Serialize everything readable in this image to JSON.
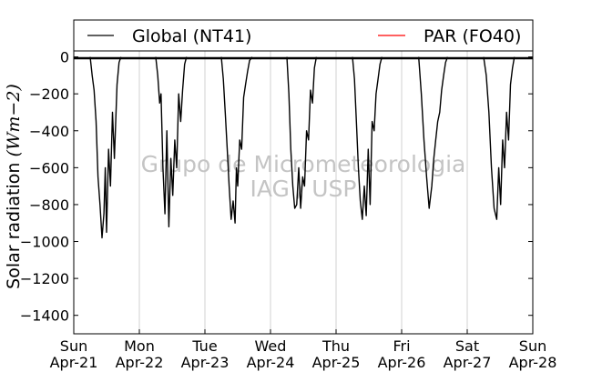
{
  "chart_data": {
    "type": "line",
    "ylabel_text": "Solar radiation ",
    "ylabel_unit": "(Wm−2)",
    "ylim": [
      -1500,
      200
    ],
    "yticks": [
      0,
      -200,
      -400,
      -600,
      -800,
      -1000,
      -1200,
      -1400
    ],
    "ytick_labels": [
      "0",
      "−200",
      "−400",
      "−600",
      "−800",
      "−1000",
      "−1200",
      "−1400"
    ],
    "xlim": [
      "2012-04-21",
      "2012-04-28"
    ],
    "xticks": [
      {
        "weekday": "Sun",
        "date": "Apr-21"
      },
      {
        "weekday": "Mon",
        "date": "Apr-22"
      },
      {
        "weekday": "Tue",
        "date": "Apr-23"
      },
      {
        "weekday": "Wed",
        "date": "Apr-24"
      },
      {
        "weekday": "Thu",
        "date": "Apr-25"
      },
      {
        "weekday": "Fri",
        "date": "Apr-26"
      },
      {
        "weekday": "Sat",
        "date": "Apr-27"
      },
      {
        "weekday": "Sun",
        "date": "Apr-28"
      }
    ],
    "vertical_grid": true,
    "legend": {
      "placement": "top",
      "entries": [
        "Global (NT41)",
        "PAR (FO40)"
      ]
    },
    "watermark": [
      "Grupo de Micrometeorologia",
      "IAG / USP"
    ],
    "series": [
      {
        "name": "Global (NT41)",
        "color": "#000000",
        "days": [
          {
            "x": [
              0.25,
              0.28,
              0.31,
              0.34,
              0.37,
              0.4,
              0.43,
              0.46,
              0.48,
              0.5,
              0.53,
              0.56,
              0.59,
              0.62,
              0.66,
              0.69,
              0.72
            ],
            "y": [
              0,
              -100,
              -180,
              -350,
              -650,
              -800,
              -980,
              -850,
              -600,
              -950,
              -500,
              -700,
              -300,
              -550,
              -150,
              -30,
              0
            ]
          },
          {
            "x": [
              0.25,
              0.28,
              0.31,
              0.33,
              0.36,
              0.39,
              0.42,
              0.45,
              0.48,
              0.51,
              0.54,
              0.57,
              0.6,
              0.63,
              0.66,
              0.69,
              0.72
            ],
            "y": [
              0,
              -100,
              -250,
              -200,
              -600,
              -850,
              -400,
              -920,
              -550,
              -750,
              -450,
              -600,
              -200,
              -350,
              -180,
              -40,
              0
            ]
          },
          {
            "x": [
              0.25,
              0.28,
              0.31,
              0.34,
              0.37,
              0.4,
              0.43,
              0.46,
              0.48,
              0.5,
              0.53,
              0.56,
              0.59,
              0.62,
              0.65,
              0.68,
              0.72
            ],
            "y": [
              0,
              -120,
              -300,
              -500,
              -700,
              -880,
              -780,
              -900,
              -600,
              -700,
              -450,
              -500,
              -220,
              -150,
              -80,
              -20,
              0
            ]
          },
          {
            "x": [
              0.25,
              0.28,
              0.31,
              0.34,
              0.37,
              0.4,
              0.43,
              0.46,
              0.49,
              0.52,
              0.55,
              0.58,
              0.61,
              0.64,
              0.67,
              0.7
            ],
            "y": [
              0,
              -200,
              -500,
              -700,
              -820,
              -800,
              -600,
              -820,
              -650,
              -700,
              -400,
              -450,
              -180,
              -250,
              -60,
              0
            ]
          },
          {
            "x": [
              0.25,
              0.28,
              0.31,
              0.34,
              0.37,
              0.4,
              0.43,
              0.46,
              0.49,
              0.52,
              0.55,
              0.58,
              0.61,
              0.64,
              0.67,
              0.7
            ],
            "y": [
              0,
              -120,
              -350,
              -600,
              -780,
              -880,
              -700,
              -860,
              -500,
              -800,
              -350,
              -400,
              -200,
              -120,
              -40,
              0
            ]
          },
          {
            "x": [
              0.26,
              0.3,
              0.34,
              0.38,
              0.42,
              0.46,
              0.49,
              0.52,
              0.55,
              0.58,
              0.61,
              0.64,
              0.67,
              0.7
            ],
            "y": [
              0,
              -200,
              -450,
              -650,
              -820,
              -700,
              -550,
              -450,
              -350,
              -300,
              -180,
              -100,
              -30,
              0
            ]
          },
          {
            "x": [
              0.25,
              0.29,
              0.33,
              0.37,
              0.41,
              0.45,
              0.48,
              0.51,
              0.54,
              0.57,
              0.6,
              0.63,
              0.66,
              0.69,
              0.72
            ],
            "y": [
              0,
              -100,
              -300,
              -600,
              -820,
              -880,
              -600,
              -800,
              -450,
              -600,
              -300,
              -450,
              -150,
              -60,
              0
            ]
          }
        ]
      },
      {
        "name": "PAR (FO40)",
        "color": "#ff0000",
        "days": []
      }
    ]
  }
}
